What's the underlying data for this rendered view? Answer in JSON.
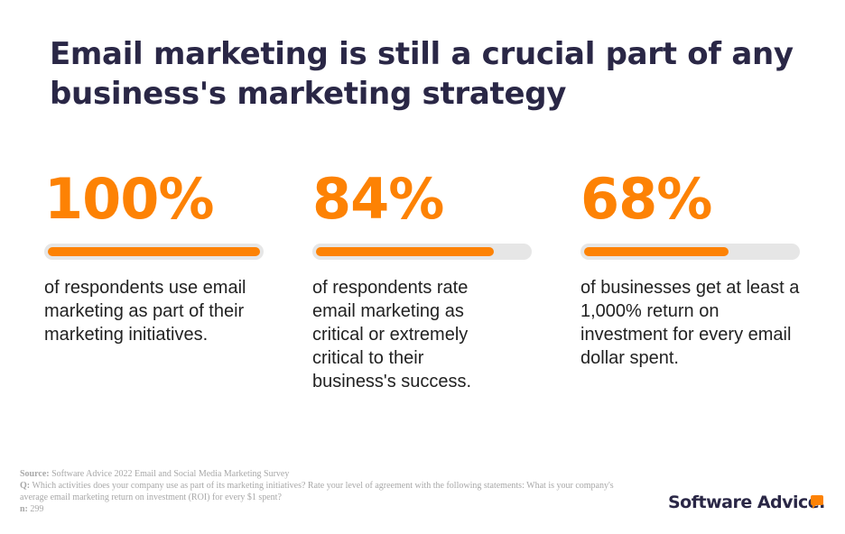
{
  "title": "Email marketing is still a crucial part of any business's marketing strategy",
  "stats": [
    {
      "value": "100%",
      "description": "of respondents use email marketing as part of their marketing initiatives."
    },
    {
      "value": "84%",
      "description": "of respondents rate email marketing as critical or extremely critical to their business's success."
    },
    {
      "value": "68%",
      "description": "of businesses get at least a 1,000% return on investment for every email dollar spent."
    }
  ],
  "chart_data": {
    "type": "bar",
    "orientation": "horizontal",
    "categories": [
      "use email marketing",
      "rate email marketing critical",
      "get at least 1,000% ROI"
    ],
    "values": [
      100,
      84,
      68
    ],
    "xlim": [
      0,
      100
    ],
    "title": "Email marketing is still a crucial part of any business's marketing strategy",
    "colors": {
      "fill": "#fd8204",
      "track": "#e6e6e6",
      "title": "#2a2746"
    }
  },
  "footer": {
    "source_label": "Source:",
    "source": "Software Advice 2022 Email and Social Media Marketing Survey",
    "q_label": "Q:",
    "question": "Which activities does your company use as part of its marketing initiatives? Rate your level of agreement with the following statements: What is your company's average email marketing return on investment (ROI) for every $1 spent?",
    "n_label": "n:",
    "n": "299"
  },
  "logo": {
    "text": "Software Advice."
  }
}
